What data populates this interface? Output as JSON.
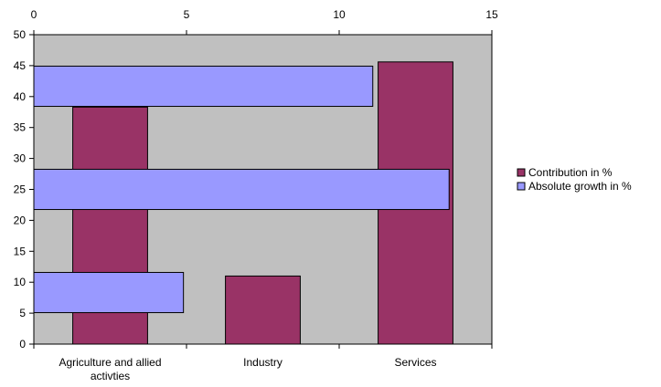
{
  "chart_data": {
    "type": "bar",
    "categories": [
      "Agriculture and allied activties",
      "Industry",
      "Services"
    ],
    "category_lines": [
      [
        "Agriculture and allied",
        "activties"
      ],
      [
        "Industry"
      ],
      [
        "Services"
      ]
    ],
    "series": [
      {
        "name": "Contribution in %",
        "orientation": "vertical",
        "axis": "left",
        "color": "#993366",
        "values": [
          38.3,
          11.0,
          45.6
        ]
      },
      {
        "name": "Absolute growth in %",
        "orientation": "horizontal",
        "axis": "top",
        "color": "#9999ff",
        "values": [
          4.9,
          13.6,
          11.1
        ]
      }
    ],
    "left_axis": {
      "min": 0,
      "max": 50,
      "step": 5,
      "ticks": [
        "0",
        "5",
        "10",
        "15",
        "20",
        "25",
        "30",
        "35",
        "40",
        "45",
        "50"
      ]
    },
    "top_axis": {
      "min": 0,
      "max": 15,
      "step": 5,
      "ticks": [
        "0",
        "5",
        "10",
        "15"
      ]
    },
    "plot_background": "#c0c0c0",
    "grid": false,
    "legend_position": "right"
  }
}
